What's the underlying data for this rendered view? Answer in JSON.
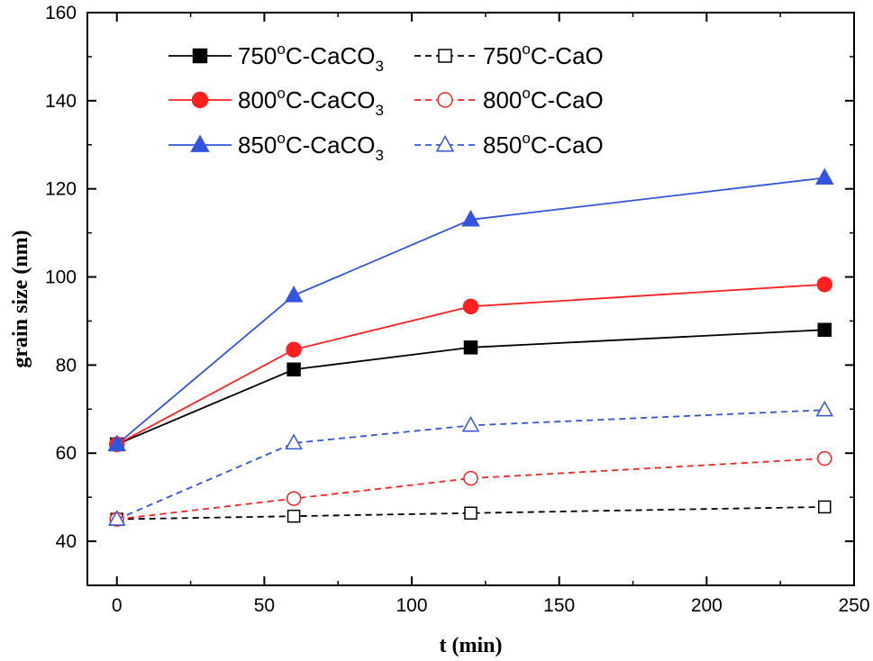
{
  "chart_data": {
    "type": "line",
    "title": "",
    "xlabel": "t (min)",
    "ylabel": "grain size (nm)",
    "xlim": [
      -10,
      250
    ],
    "ylim": [
      30,
      160
    ],
    "xticks": [
      0,
      50,
      100,
      150,
      200,
      250
    ],
    "yticks": [
      40,
      60,
      80,
      100,
      120,
      140,
      160
    ],
    "x": [
      0,
      60,
      120,
      240
    ],
    "grid": false,
    "legend_position": "top-left",
    "series": [
      {
        "key": "s750caco3",
        "temp": "750",
        "deg": "o",
        "label_tail": "C-CaCO",
        "sub": "3",
        "color": "#000000",
        "marker": "square",
        "filled": true,
        "dashed": false,
        "values": [
          62,
          79,
          84,
          88
        ]
      },
      {
        "key": "s750cao",
        "temp": "750",
        "deg": "o",
        "label_tail": "C-CaO",
        "sub": "",
        "color": "#000000",
        "marker": "square",
        "filled": false,
        "dashed": true,
        "values": [
          45,
          45.7,
          46.4,
          47.8
        ]
      },
      {
        "key": "s800caco3",
        "temp": "800",
        "deg": "o",
        "label_tail": "C-CaCO",
        "sub": "3",
        "color": "#ff2020",
        "marker": "circle",
        "filled": true,
        "dashed": false,
        "values": [
          62,
          83.5,
          93.3,
          98.3
        ]
      },
      {
        "key": "s800cao",
        "temp": "800",
        "deg": "o",
        "label_tail": "C-CaO",
        "sub": "",
        "color": "#ff2020",
        "marker": "circle",
        "filled": false,
        "dashed": true,
        "values": [
          45,
          49.7,
          54.3,
          58.8
        ]
      },
      {
        "key": "s850caco3",
        "temp": "850",
        "deg": "o",
        "label_tail": "C-CaCO",
        "sub": "3",
        "color": "#3355dd",
        "marker": "triangle",
        "filled": true,
        "dashed": false,
        "values": [
          62,
          95.8,
          113,
          122.5
        ]
      },
      {
        "key": "s850cao",
        "temp": "850",
        "deg": "o",
        "label_tail": "C-CaO",
        "sub": "",
        "color": "#3355dd",
        "marker": "triangle",
        "filled": false,
        "dashed": true,
        "values": [
          45,
          62.3,
          66.3,
          69.8
        ]
      }
    ]
  }
}
